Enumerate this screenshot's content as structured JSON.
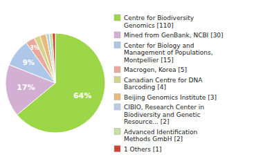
{
  "chart_data": {
    "type": "pie",
    "categories": [
      "Centre for Biodiversity\nGenomics [110]",
      "Mined from GenBank, NCBI [30]",
      "Center for Biology and\nManagement of Populations,\nMontpellier [15]",
      "Macrogen, Korea [5]",
      "Canadian Centre for DNA\nBarcoding [4]",
      "Beijing Genomics Institute [3]",
      "CIBIO, Research Center in\nBiodiversity and Genetic\nResource... [2]",
      "Advanced Identification\nMethods GmbH [2]",
      "1 Others [1]"
    ],
    "values": [
      64,
      17,
      9,
      3,
      2,
      2,
      1,
      1,
      1
    ],
    "value_labels": [
      "64%",
      "17%",
      "9%",
      "3%",
      null,
      null,
      null,
      null,
      null
    ],
    "colors": [
      "#9ed64a",
      "#d4afd4",
      "#aec6e8",
      "#e8a89c",
      "#d4d48c",
      "#e8b87c",
      "#b8cce4",
      "#c5e0a0",
      "#cc4433"
    ],
    "data_labels": true,
    "legend": "right"
  }
}
